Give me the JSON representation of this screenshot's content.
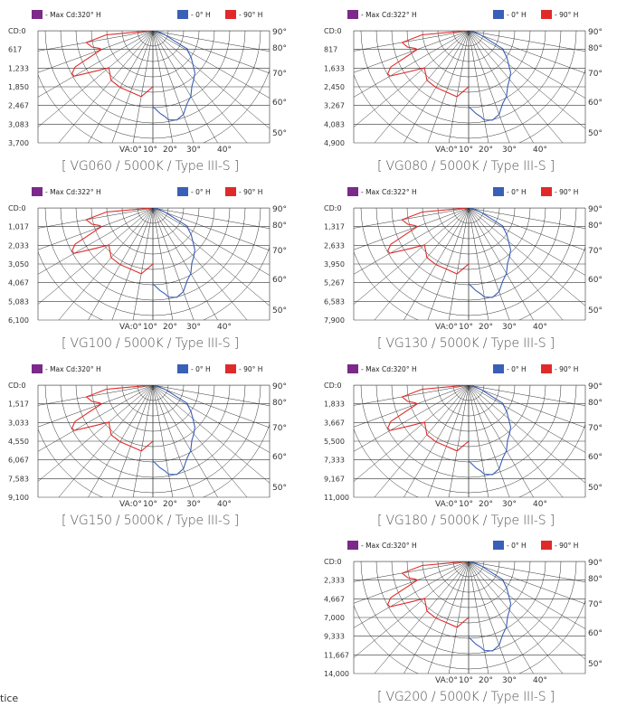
{
  "colors": {
    "max": "#7b2a8a",
    "h0": "#3a5fb8",
    "h90": "#e02a2a"
  },
  "page": {
    "fragment_text": "tice"
  },
  "chart_data": [
    {
      "type": "line",
      "title": "[ VG060 / 5000K / Type III-S ]",
      "legend": {
        "max": "- Max Cd:320° H",
        "h0": "- 0° H",
        "h90": "- 90° H"
      },
      "yticks": [
        "CD:0",
        "617",
        "1,233",
        "1,850",
        "2,467",
        "3,083",
        "3,700"
      ],
      "ylim": [
        0,
        3700
      ],
      "angles_right": [
        "90°",
        "80°",
        "70°",
        "60°",
        "50°"
      ],
      "angles_bottom": [
        "VA:0°",
        "10°",
        "20°",
        "30°",
        "40°"
      ],
      "series": [
        {
          "name": "- 0° H",
          "angles": [
            0,
            5,
            8,
            10,
            15,
            20,
            25,
            30,
            35,
            40,
            45,
            50,
            55,
            60,
            62,
            65,
            70,
            75,
            80,
            85,
            90
          ],
          "values": [
            2500,
            2740,
            2860,
            2990,
            3050,
            2940,
            2660,
            2500,
            2240,
            2100,
            1960,
            1720,
            1540,
            1330,
            1300,
            760,
            470,
            250,
            130,
            60,
            20
          ]
        },
        {
          "name": "- 90° H",
          "angles": [
            0,
            10,
            20,
            30,
            40,
            50,
            55,
            60,
            62,
            65,
            70,
            72,
            75,
            80,
            85,
            90
          ],
          "values": [
            1850,
            2210,
            2150,
            2160,
            2140,
            1900,
            2330,
            3000,
            3020,
            2830,
            1800,
            1870,
            2080,
            2230,
            1540,
            30
          ]
        }
      ]
    },
    {
      "type": "line",
      "title": "[ VG080 / 5000K / Type III-S ]",
      "legend": {
        "max": "- Max Cd:322° H",
        "h0": "- 0° H",
        "h90": "- 90° H"
      },
      "yticks": [
        "CD:0",
        "817",
        "1,633",
        "2,450",
        "3,267",
        "4,083",
        "4,900"
      ],
      "ylim": [
        0,
        4900
      ],
      "angles_right": [
        "90°",
        "80°",
        "70°",
        "60°",
        "50°"
      ],
      "angles_bottom": [
        "VA:0°",
        "10°",
        "20°",
        "30°",
        "40°"
      ],
      "series": [
        {
          "name": "- 0° H",
          "angles": [
            0,
            5,
            8,
            10,
            15,
            20,
            25,
            30,
            35,
            40,
            45,
            50,
            55,
            60,
            62,
            65,
            70,
            75,
            80,
            85,
            90
          ],
          "values": [
            3310,
            3630,
            3790,
            3960,
            4040,
            3890,
            3520,
            3310,
            2970,
            2780,
            2600,
            2280,
            2040,
            1760,
            1720,
            1010,
            620,
            330,
            170,
            80,
            30
          ]
        },
        {
          "name": "- 90° H",
          "angles": [
            0,
            10,
            20,
            30,
            40,
            50,
            55,
            60,
            62,
            65,
            70,
            72,
            75,
            80,
            85,
            90
          ],
          "values": [
            2450,
            2930,
            2850,
            2860,
            2830,
            2520,
            3090,
            3970,
            4000,
            3750,
            2380,
            2480,
            2760,
            2950,
            2040,
            40
          ]
        }
      ]
    },
    {
      "type": "line",
      "title": "[ VG100 / 5000K / Type III-S ]",
      "legend": {
        "max": "- Max Cd:322° H",
        "h0": "- 0° H",
        "h90": "- 90° H"
      },
      "yticks": [
        "CD:0",
        "1,017",
        "2,033",
        "3,050",
        "4,067",
        "5,083",
        "6,100"
      ],
      "ylim": [
        0,
        6100
      ],
      "angles_right": [
        "90°",
        "80°",
        "70°",
        "60°",
        "50°"
      ],
      "angles_bottom": [
        "VA:0°",
        "10°",
        "20°",
        "30°",
        "40°"
      ],
      "series": [
        {
          "name": "- 0° H",
          "angles": [
            0,
            5,
            8,
            10,
            15,
            20,
            25,
            30,
            35,
            40,
            45,
            50,
            55,
            60,
            62,
            65,
            70,
            75,
            80,
            85,
            90
          ],
          "values": [
            4120,
            4520,
            4720,
            4930,
            5030,
            4850,
            4390,
            4120,
            3690,
            3460,
            3230,
            2840,
            2540,
            2190,
            2140,
            1250,
            770,
            410,
            210,
            100,
            30
          ]
        },
        {
          "name": "- 90° H",
          "angles": [
            0,
            10,
            20,
            30,
            40,
            50,
            55,
            60,
            62,
            65,
            70,
            72,
            75,
            80,
            85,
            90
          ],
          "values": [
            3050,
            3640,
            3540,
            3560,
            3530,
            3130,
            3840,
            4950,
            4980,
            4670,
            2970,
            3080,
            3430,
            3680,
            2540,
            50
          ]
        }
      ]
    },
    {
      "type": "line",
      "title": "[ VG130 / 5000K / Type III-S ]",
      "legend": {
        "max": "- Max Cd:322° H",
        "h0": "- 0° H",
        "h90": "- 90° H"
      },
      "yticks": [
        "CD:0",
        "1,317",
        "2,633",
        "3,950",
        "5,267",
        "6,583",
        "7,900"
      ],
      "ylim": [
        0,
        7900
      ],
      "angles_right": [
        "90°",
        "80°",
        "70°",
        "60°",
        "50°"
      ],
      "angles_bottom": [
        "VA:0°",
        "10°",
        "20°",
        "30°",
        "40°"
      ],
      "series": [
        {
          "name": "- 0° H",
          "angles": [
            0,
            5,
            8,
            10,
            15,
            20,
            25,
            30,
            35,
            40,
            45,
            50,
            55,
            60,
            62,
            65,
            70,
            75,
            80,
            85,
            90
          ],
          "values": [
            5330,
            5850,
            6110,
            6380,
            6520,
            6280,
            5690,
            5330,
            4780,
            4480,
            4190,
            3670,
            3280,
            2840,
            2770,
            1620,
            1000,
            530,
            280,
            130,
            40
          ]
        },
        {
          "name": "- 90° H",
          "angles": [
            0,
            10,
            20,
            30,
            40,
            50,
            55,
            60,
            62,
            65,
            70,
            72,
            75,
            80,
            85,
            90
          ],
          "values": [
            3950,
            4720,
            4580,
            4610,
            4570,
            4050,
            4980,
            6400,
            6450,
            6040,
            3840,
            3990,
            4440,
            4760,
            3280,
            60
          ]
        }
      ]
    },
    {
      "type": "line",
      "title": "[ VG150 / 5000K / Type III-S ]",
      "legend": {
        "max": "- Max Cd:320° H",
        "h0": "- 0° H",
        "h90": "- 90° H"
      },
      "yticks": [
        "CD:0",
        "1,517",
        "3,033",
        "4,550",
        "6,067",
        "7,583",
        "9,100"
      ],
      "ylim": [
        0,
        9100
      ],
      "angles_right": [
        "90°",
        "80°",
        "70°",
        "60°",
        "50°"
      ],
      "angles_bottom": [
        "VA:0°",
        "10°",
        "20°",
        "30°",
        "40°"
      ],
      "series": [
        {
          "name": "- 0° H",
          "angles": [
            0,
            5,
            8,
            10,
            15,
            20,
            25,
            30,
            35,
            40,
            45,
            50,
            55,
            60,
            62,
            65,
            70,
            75,
            80,
            85,
            90
          ],
          "values": [
            6140,
            6740,
            7030,
            7350,
            7510,
            7230,
            6550,
            6140,
            5500,
            5160,
            4820,
            4230,
            3780,
            3270,
            3190,
            1860,
            1150,
            610,
            320,
            150,
            50
          ]
        },
        {
          "name": "- 90° H",
          "angles": [
            0,
            10,
            20,
            30,
            40,
            50,
            55,
            60,
            62,
            65,
            70,
            72,
            75,
            80,
            85,
            90
          ],
          "values": [
            4550,
            5430,
            5280,
            5310,
            5260,
            4670,
            5730,
            7370,
            7430,
            6960,
            4420,
            4600,
            5110,
            5480,
            3780,
            70
          ]
        }
      ]
    },
    {
      "type": "line",
      "title": "[ VG180 / 5000K / Type III-S ]",
      "legend": {
        "max": "- Max Cd:320° H",
        "h0": "- 0° H",
        "h90": "- 90° H"
      },
      "yticks": [
        "CD:0",
        "1,833",
        "3,667",
        "5,500",
        "7,333",
        "9,167",
        "11,000"
      ],
      "ylim": [
        0,
        11000
      ],
      "angles_right": [
        "90°",
        "80°",
        "70°",
        "60°",
        "50°"
      ],
      "angles_bottom": [
        "VA:0°",
        "10°",
        "20°",
        "30°",
        "40°"
      ],
      "series": [
        {
          "name": "- 0° H",
          "angles": [
            0,
            5,
            8,
            10,
            15,
            20,
            25,
            30,
            35,
            40,
            45,
            50,
            55,
            60,
            62,
            65,
            70,
            75,
            80,
            85,
            90
          ],
          "values": [
            7420,
            8150,
            8500,
            8880,
            9080,
            8740,
            7920,
            7420,
            6650,
            6240,
            5830,
            5110,
            4570,
            3950,
            3850,
            2250,
            1390,
            740,
            390,
            180,
            60
          ]
        },
        {
          "name": "- 90° H",
          "angles": [
            0,
            10,
            20,
            30,
            40,
            50,
            55,
            60,
            62,
            65,
            70,
            72,
            75,
            80,
            85,
            90
          ],
          "values": [
            5500,
            6560,
            6380,
            6420,
            6360,
            5640,
            6930,
            8910,
            8980,
            8420,
            5340,
            5560,
            6180,
            6620,
            4570,
            80
          ]
        }
      ]
    },
    {
      "type": "line",
      "title": "[ VG200 / 5000K / Type III-S ]",
      "legend": {
        "max": "- Max Cd:320° H",
        "h0": "- 0° H",
        "h90": "- 90° H"
      },
      "yticks": [
        "CD:0",
        "2,333",
        "4,667",
        "7,000",
        "9,333",
        "11,667",
        "14,000"
      ],
      "ylim": [
        0,
        14000
      ],
      "angles_right": [
        "90°",
        "80°",
        "70°",
        "60°",
        "50°"
      ],
      "angles_bottom": [
        "VA:0°",
        "10°",
        "20°",
        "30°",
        "40°"
      ],
      "series": [
        {
          "name": "- 0° H",
          "angles": [
            0,
            5,
            8,
            10,
            15,
            20,
            25,
            30,
            35,
            40,
            45,
            50,
            55,
            60,
            62,
            65,
            70,
            75,
            80,
            85,
            90
          ],
          "values": [
            9450,
            10370,
            10820,
            11300,
            11560,
            11120,
            10080,
            9450,
            8460,
            7940,
            7420,
            6500,
            5820,
            5030,
            4900,
            2860,
            1770,
            940,
            500,
            230,
            80
          ]
        },
        {
          "name": "- 90° H",
          "angles": [
            0,
            10,
            20,
            30,
            40,
            50,
            55,
            60,
            62,
            65,
            70,
            72,
            75,
            80,
            85,
            90
          ],
          "values": [
            7000,
            8350,
            8120,
            8170,
            8090,
            7180,
            8820,
            11340,
            11430,
            10720,
            6800,
            7080,
            7870,
            8430,
            5820,
            100
          ]
        }
      ]
    }
  ]
}
